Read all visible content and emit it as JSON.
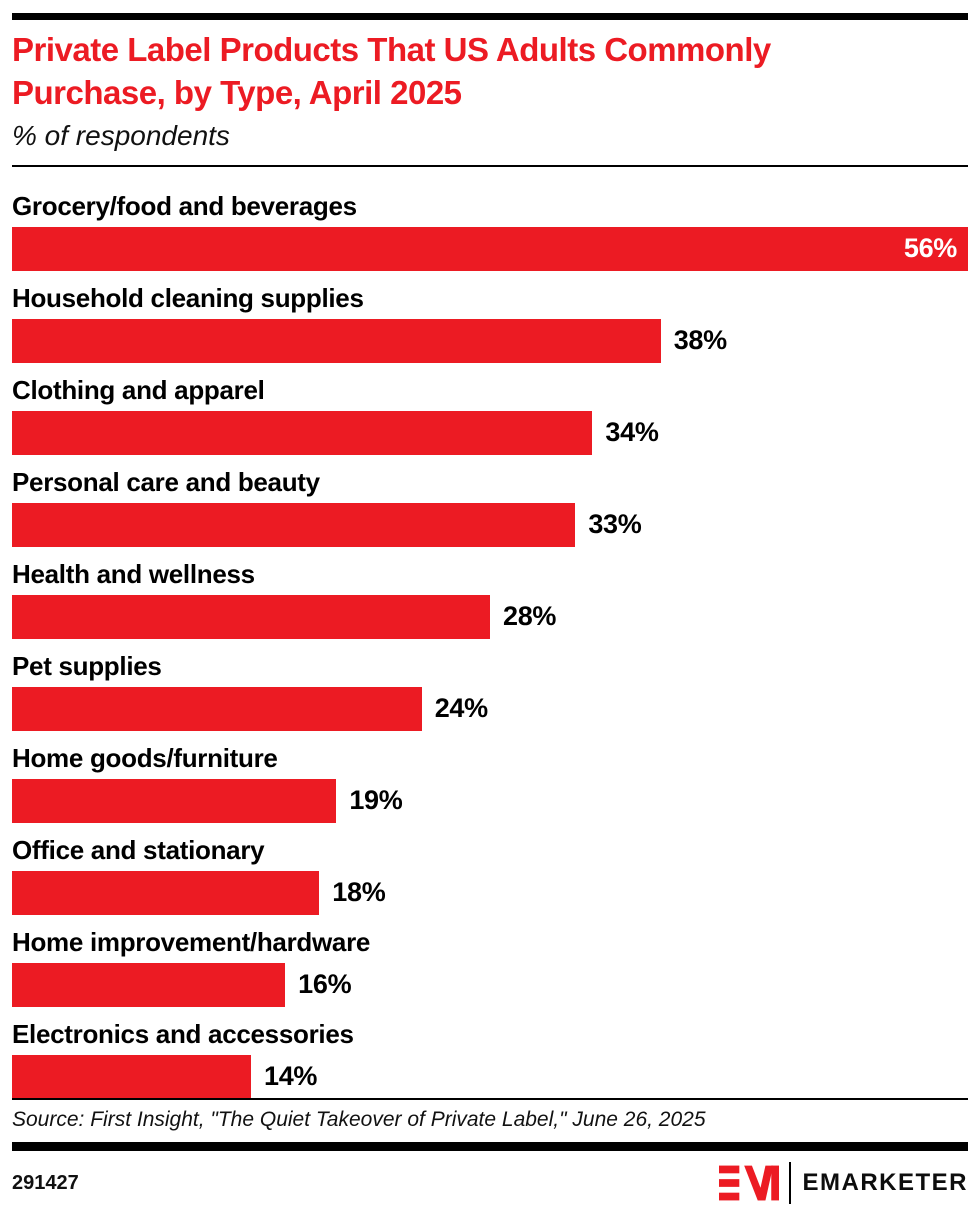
{
  "header": {
    "title": "Private Label Products That US Adults Commonly Purchase, by Type, April 2025",
    "subtitle": "% of respondents"
  },
  "chart_data": {
    "type": "bar",
    "orientation": "horizontal",
    "title": "Private Label Products That US Adults Commonly Purchase, by Type, April 2025",
    "subtitle": "% of respondents",
    "categories": [
      "Grocery/food and beverages",
      "Household cleaning supplies",
      "Clothing and apparel",
      "Personal care and beauty",
      "Health and wellness",
      "Pet supplies",
      "Home goods/furniture",
      "Office and stationary",
      "Home improvement/hardware",
      "Electronics and accessories"
    ],
    "values": [
      56,
      38,
      34,
      33,
      28,
      24,
      19,
      18,
      16,
      14
    ],
    "value_suffix": "%",
    "xlim": [
      0,
      56
    ],
    "grid": false,
    "legend": "none",
    "bar_color": "#EC1B23",
    "value_labels": [
      "56%",
      "38%",
      "34%",
      "33%",
      "28%",
      "24%",
      "19%",
      "18%",
      "16%",
      "14%"
    ]
  },
  "footer": {
    "source": "Source: First Insight, \"The Quiet Takeover of Private Label,\" June 26, 2025",
    "chart_id": "291427",
    "logo_mark": "EM",
    "logo_text": "EMARKETER"
  },
  "colors": {
    "red": "#EC1B23",
    "black": "#000000",
    "text": "#111111"
  }
}
